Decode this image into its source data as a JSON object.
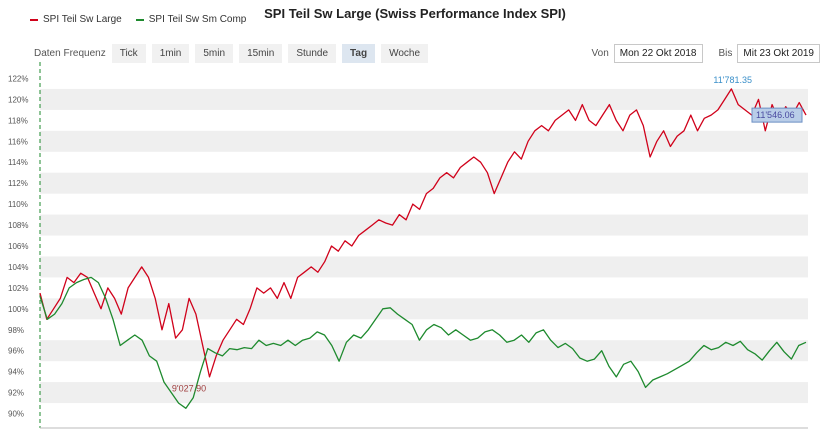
{
  "chart_data": {
    "type": "line",
    "title": "SPI Teil Sw Large (Swiss Performance Index SPI)",
    "y_unit": "%",
    "ylim": [
      89,
      123
    ],
    "yticks": [
      "90%",
      "92%",
      "94%",
      "96%",
      "98%",
      "100%",
      "102%",
      "104%",
      "106%",
      "108%",
      "110%",
      "112%",
      "114%",
      "116%",
      "118%",
      "120%",
      "122%"
    ],
    "x_range": [
      "Mon 22 Okt 2018",
      "Mit 23 Okt 2019"
    ],
    "grid": true,
    "legend": "top-left",
    "series": [
      {
        "name": "SPI Teil Sw Large",
        "color": "#d0021b",
        "values": [
          101.5,
          99,
          100,
          101,
          103,
          102.5,
          103.4,
          103,
          101.5,
          100,
          102,
          101,
          99.5,
          102,
          103,
          104,
          103,
          101,
          98,
          100.5,
          97.2,
          98,
          101,
          99.5,
          96.5,
          93.5,
          95.5,
          97,
          98,
          99,
          98.5,
          100,
          102,
          101.5,
          102,
          101,
          102.5,
          101,
          103,
          103.5,
          104,
          103.5,
          104.5,
          106,
          105.5,
          106.5,
          106,
          107,
          107.5,
          108,
          108.5,
          108.2,
          108,
          109,
          108.5,
          110,
          109.5,
          111,
          111.5,
          112.5,
          113,
          112.5,
          113.5,
          114,
          114.5,
          114,
          113,
          111,
          112.5,
          114,
          115,
          114.3,
          116,
          117,
          117.5,
          117,
          118,
          118.5,
          119,
          118,
          119.5,
          118,
          117.5,
          118.5,
          119.5,
          118,
          117,
          118.5,
          119,
          117.5,
          114.5,
          116,
          117,
          115.5,
          116.5,
          117,
          118.5,
          117,
          118.2,
          118.5,
          119,
          120,
          121,
          119.5,
          119,
          118.5,
          120,
          117,
          119.5,
          118,
          119.3,
          118.5,
          119.7,
          118.5
        ],
        "annotations": [
          {
            "label": "11'781.35"
          },
          {
            "label": "11'546.06"
          }
        ]
      },
      {
        "name": "SPI Teil Sw Sm Comp",
        "color": "#1e8a2e",
        "values": [
          101.2,
          99,
          99.5,
          100.5,
          102,
          102.5,
          102.8,
          103,
          102.5,
          101,
          99,
          96.5,
          97,
          97.5,
          97,
          95.5,
          95,
          93,
          92,
          91,
          90.5,
          91.5,
          94,
          96.2,
          95.8,
          95.5,
          96.2,
          96.1,
          96.3,
          96.2,
          97,
          96.5,
          96.7,
          96.5,
          97,
          96.5,
          97,
          97.2,
          97.8,
          97.5,
          96.5,
          95,
          96.8,
          97.5,
          97.2,
          98,
          99,
          100,
          100.1,
          99.5,
          99,
          98.5,
          97,
          98,
          98.5,
          98.2,
          97.5,
          98,
          97.5,
          97,
          97.2,
          97.8,
          98,
          97.5,
          96.8,
          97,
          97.5,
          96.8,
          97.7,
          98,
          97,
          96.3,
          96.7,
          96.2,
          95.3,
          95,
          95.2,
          96,
          94.5,
          93.5,
          94.7,
          95,
          94,
          92.5,
          93.2,
          93.5,
          93.8,
          94.2,
          94.6,
          95,
          95.8,
          96.5,
          96.1,
          96.3,
          96.8,
          96.5,
          96.9,
          96.1,
          95.7,
          95.1,
          96,
          96.8,
          95.9,
          95.2,
          96.5,
          96.8
        ],
        "annotations": [
          {
            "label": "9'027.90"
          }
        ]
      }
    ]
  },
  "header": {
    "freq_label": "Daten Frequenz",
    "freq_buttons": [
      "Tick",
      "1min",
      "5min",
      "15min",
      "Stunde",
      "Tag",
      "Woche"
    ],
    "active_freq": "Tag",
    "from_label": "Von",
    "from_value": "Mon 22 Okt 2018",
    "to_label": "Bis",
    "to_value": "Mit 23 Okt 2019"
  }
}
